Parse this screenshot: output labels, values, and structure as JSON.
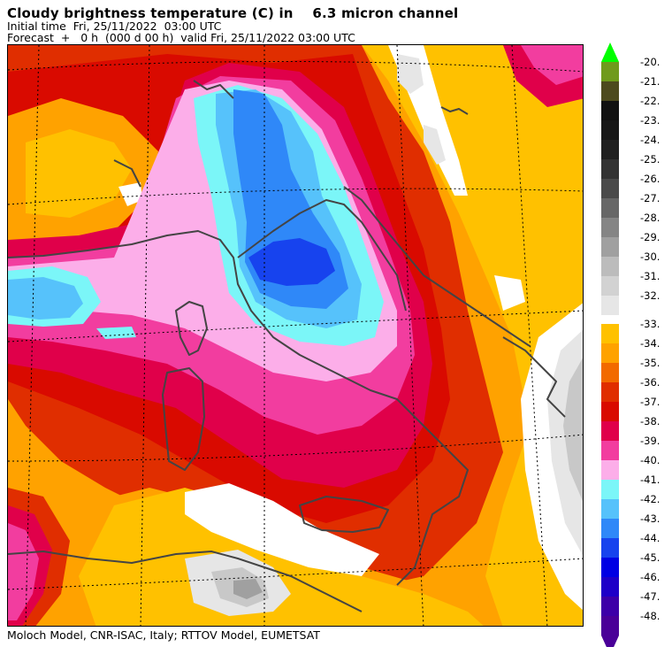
{
  "header": {
    "title": "Cloudy brightness temperature (C) in    6.3 micron channel",
    "initial_time": "Initial time  Fri, 25/11/2022  03:00 UTC",
    "forecast": "Forecast  +   0 h  (000 d 00 h)  valid Fri, 25/11/2022 03:00 UTC"
  },
  "footer": {
    "credits": "Moloch Model, CNR-ISAC, Italy; RTTOV Model, EUMETSAT"
  },
  "legend": {
    "units": "C",
    "bins": [
      {
        "label": "-20.",
        "color": "#6f9a1c"
      },
      {
        "label": "-21.",
        "color": "#4d4a1e"
      },
      {
        "label": "-22.",
        "color": "#111111"
      },
      {
        "label": "-23.",
        "color": "#171717"
      },
      {
        "label": "-24.",
        "color": "#202020"
      },
      {
        "label": "-25.",
        "color": "#333333"
      },
      {
        "label": "-26.",
        "color": "#4a4a4a"
      },
      {
        "label": "-27.",
        "color": "#676767"
      },
      {
        "label": "-28.",
        "color": "#858585"
      },
      {
        "label": "-29.",
        "color": "#a0a0a0"
      },
      {
        "label": "-30.",
        "color": "#bcbcbc"
      },
      {
        "label": "-31.",
        "color": "#d2d2d2"
      },
      {
        "label": "-32.",
        "color": "#e6e6e6"
      },
      {
        "label": "-33.",
        "color": "#ffc100"
      },
      {
        "label": "-34.",
        "color": "#ffa200"
      },
      {
        "label": "-35.",
        "color": "#f26a00"
      },
      {
        "label": "-36.",
        "color": "#e02e00"
      },
      {
        "label": "-37.",
        "color": "#d90a00"
      },
      {
        "label": "-38.",
        "color": "#e0004a"
      },
      {
        "label": "-39.",
        "color": "#f23d9f"
      },
      {
        "label": "-40.",
        "color": "#fcaee9"
      },
      {
        "label": "-41.",
        "color": "#7bf6f8"
      },
      {
        "label": "-42.",
        "color": "#56c2fb"
      },
      {
        "label": "-43.",
        "color": "#2f88f8"
      },
      {
        "label": "-44.",
        "color": "#1743ee"
      },
      {
        "label": "-45.",
        "color": "#0000e4"
      },
      {
        "label": "-46.",
        "color": "#1e00c8"
      },
      {
        "label": "-47.",
        "color": "#3d00a8"
      },
      {
        "label": "-48.",
        "color": "#4a0098"
      }
    ],
    "top_arrow_color": "#00ff00",
    "bottom_arrow_color": "#4a0098"
  },
  "map": {
    "colors": {
      "white": "#ffffff",
      "light_gray": "#e6e6e6",
      "gray": "#c8c8c8",
      "dark_gray": "#a0a0a0",
      "yellow": "#ffc100",
      "orange": "#ffa200",
      "dark_orange": "#f26a00",
      "red": "#e02e00",
      "crimson": "#d90a00",
      "rose": "#e0004a",
      "magenta": "#f23d9f",
      "pink": "#fcaee9",
      "cyan": "#7bf6f8",
      "sky": "#56c2fb",
      "blue": "#2f88f8",
      "deep_blue": "#1743ee",
      "coast": "#444444",
      "grid": "#000000"
    }
  }
}
